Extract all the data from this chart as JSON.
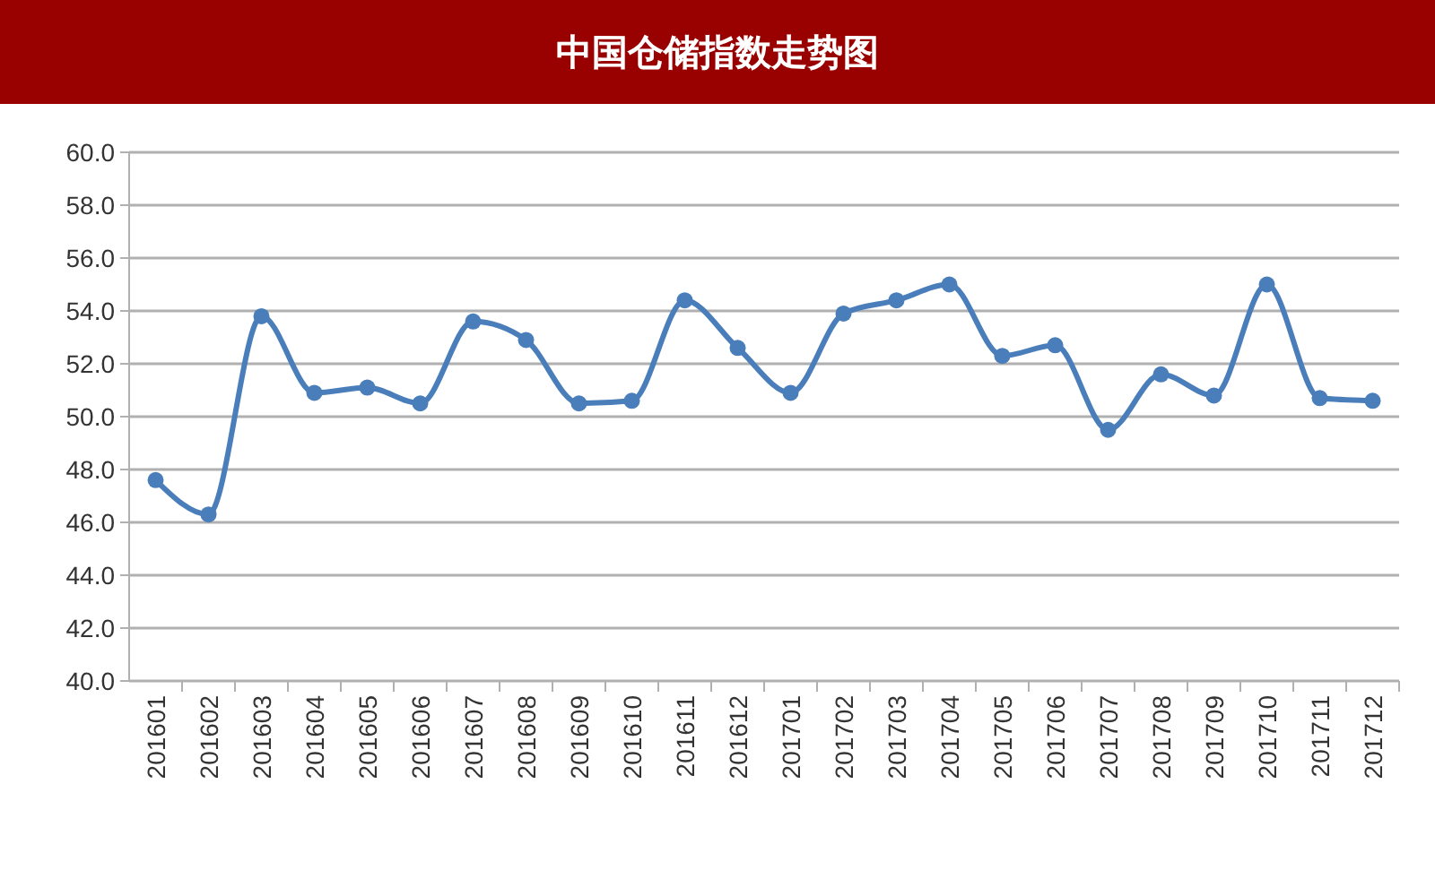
{
  "chart_data": {
    "type": "line",
    "title": "中国仓储指数走势图",
    "categories": [
      "201601",
      "201602",
      "201603",
      "201604",
      "201605",
      "201606",
      "201607",
      "201608",
      "201609",
      "201610",
      "201611",
      "201612",
      "201701",
      "201702",
      "201703",
      "201704",
      "201705",
      "201706",
      "201707",
      "201708",
      "201709",
      "201710",
      "201711",
      "201712"
    ],
    "series": [
      {
        "color": "#4a7ebb",
        "values": [
          47.6,
          46.3,
          53.8,
          50.9,
          51.1,
          50.5,
          53.6,
          52.9,
          50.5,
          50.6,
          54.4,
          52.6,
          50.9,
          53.9,
          54.4,
          55.0,
          52.3,
          52.7,
          49.5,
          51.6,
          50.8,
          55.0,
          50.7,
          50.6
        ]
      }
    ],
    "ylim": [
      40,
      60
    ],
    "yticks": [
      {
        "value": 40,
        "label": "40.0"
      },
      {
        "value": 42,
        "label": "42.0"
      },
      {
        "value": 44,
        "label": "44.0"
      },
      {
        "value": 46,
        "label": "46.0"
      },
      {
        "value": 48,
        "label": "48.0"
      },
      {
        "value": 50,
        "label": "50.0"
      },
      {
        "value": 52,
        "label": "52.0"
      },
      {
        "value": 54,
        "label": "54.0"
      },
      {
        "value": 56,
        "label": "56.0"
      },
      {
        "value": 58,
        "label": "58.0"
      },
      {
        "value": 60,
        "label": "60.0"
      }
    ],
    "grid": "y",
    "marker": "circle",
    "line_style": "solid"
  }
}
